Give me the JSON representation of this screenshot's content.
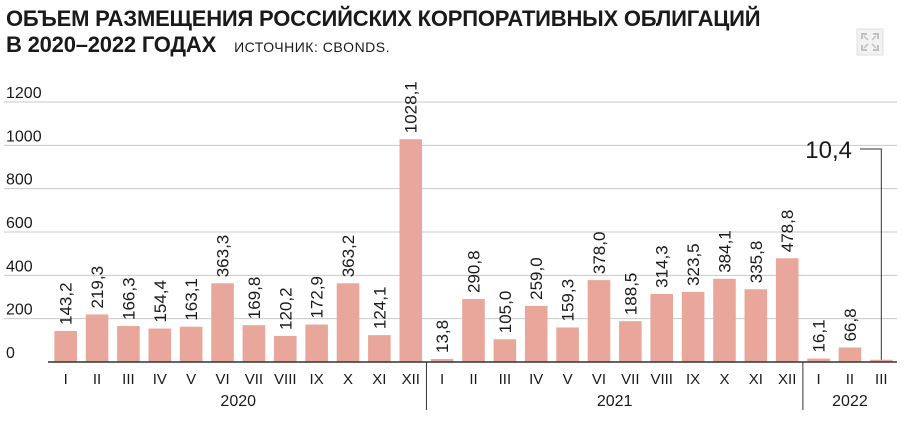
{
  "header": {
    "title_line1": "ОБЪЕМ РАЗМЕЩЕНИЯ РОССИЙСКИХ КОРПОРАТИВНЫХ ОБЛИГАЦИЙ",
    "title_line2": "В 2020–2022 ГОДАХ",
    "source": "ИСТОЧНИК: CBONDS."
  },
  "icons": {
    "expand": "expand-icon"
  },
  "colors": {
    "bar": "#e8a79a",
    "axis": "#333333",
    "grid": "#c8c8c8"
  },
  "chart_data": {
    "type": "bar",
    "ylim": [
      0,
      1200
    ],
    "yticks": [
      0,
      200,
      400,
      600,
      800,
      1000,
      1200
    ],
    "ytick_labels": [
      "0",
      "200",
      "400",
      "600",
      "800",
      "1000",
      "1200"
    ],
    "grid": true,
    "groups": [
      {
        "year": "2020",
        "count": 12
      },
      {
        "year": "2021",
        "count": 12
      },
      {
        "year": "2022",
        "count": 3
      }
    ],
    "categories": [
      "I",
      "II",
      "III",
      "IV",
      "V",
      "VI",
      "VII",
      "VIII",
      "IX",
      "X",
      "XI",
      "XII",
      "I",
      "II",
      "III",
      "IV",
      "V",
      "VI",
      "VII",
      "VIII",
      "IX",
      "X",
      "XI",
      "XII",
      "I",
      "II",
      "III"
    ],
    "values": [
      143.2,
      219.3,
      166.3,
      154.4,
      163.1,
      363.3,
      169.8,
      120.2,
      172.9,
      363.2,
      124.1,
      1028.1,
      13.8,
      290.8,
      105.0,
      259.0,
      159.3,
      378.0,
      188.5,
      314.3,
      323.5,
      384.1,
      335.8,
      478.8,
      16.1,
      66.8,
      10.4
    ],
    "value_labels": [
      "143,2",
      "219,3",
      "166,3",
      "154,4",
      "163,1",
      "363,3",
      "169,8",
      "120,2",
      "172,9",
      "363,2",
      "124,1",
      "1028,1",
      "13,8",
      "290,8",
      "105,0",
      "259,0",
      "159,3",
      "378,0",
      "188,5",
      "314,3",
      "323,5",
      "384,1",
      "335,8",
      "478,8",
      "16,1",
      "66,8",
      "10,4"
    ],
    "callout_index": 26
  }
}
